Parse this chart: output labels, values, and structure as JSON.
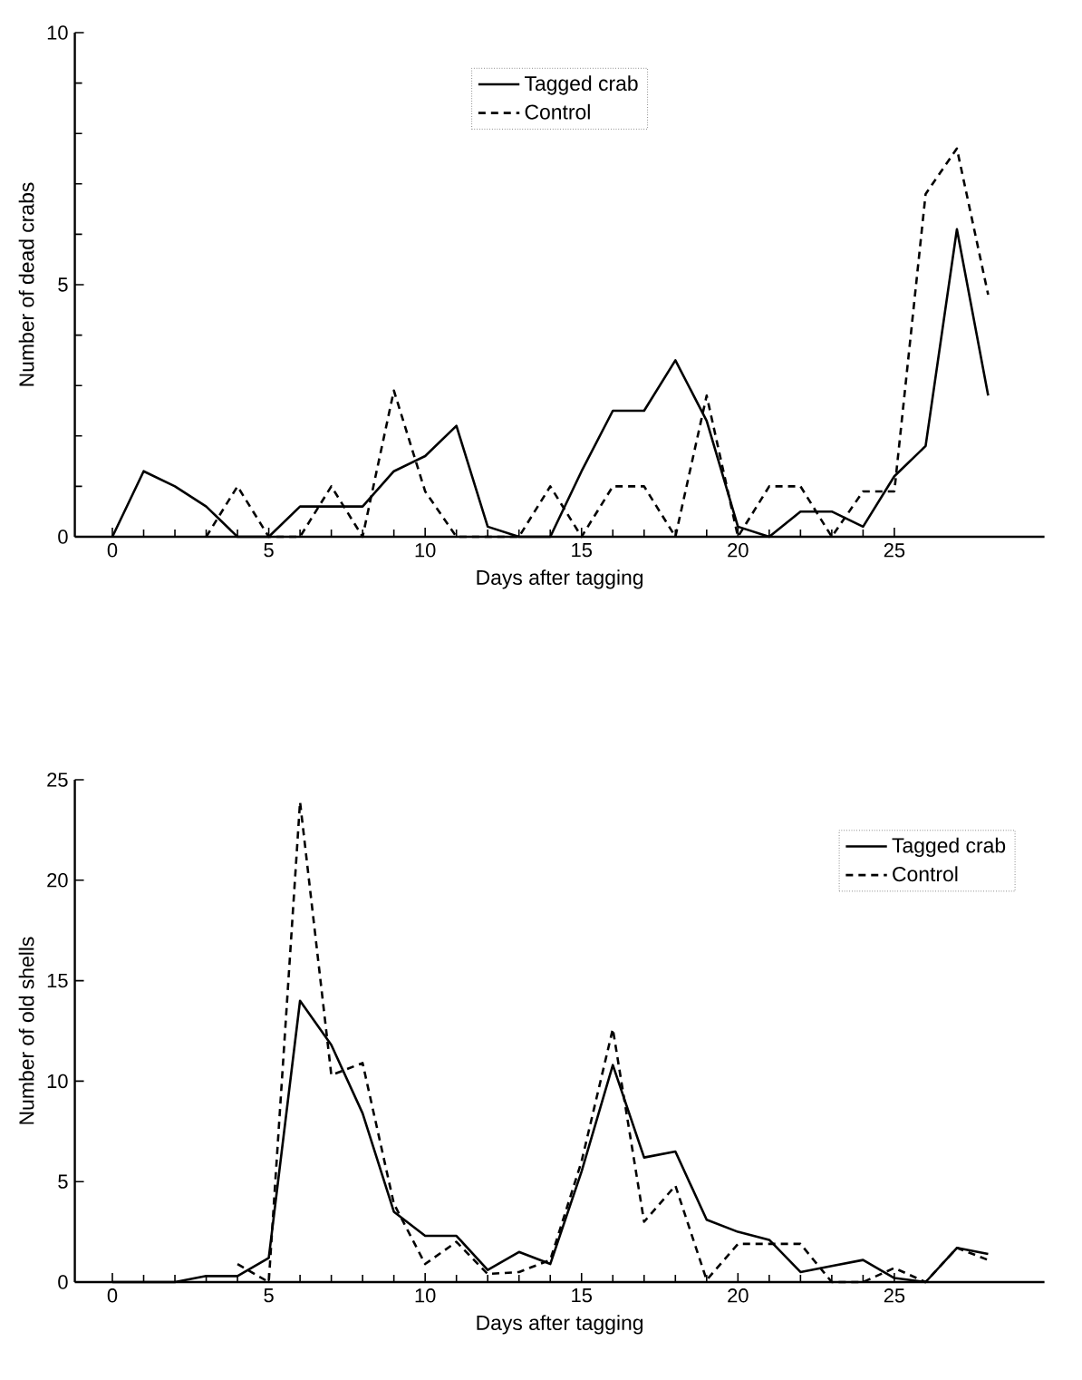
{
  "chart_data": [
    {
      "type": "line",
      "xlabel": "Days after tagging",
      "ylabel": "Number of dead crabs",
      "x": [
        0,
        1,
        2,
        3,
        4,
        5,
        6,
        7,
        8,
        9,
        10,
        11,
        12,
        13,
        14,
        15,
        16,
        17,
        18,
        19,
        20,
        21,
        22,
        23,
        24,
        25,
        26,
        27,
        28
      ],
      "xlim": [
        -1.2,
        29.8
      ],
      "ylim": [
        0,
        10
      ],
      "xticks": [
        0,
        5,
        10,
        15,
        20,
        25
      ],
      "yticks": [
        0,
        5,
        10
      ],
      "legend": "top",
      "grid": false,
      "series": [
        {
          "name": "Tagged crab",
          "color": "#000000",
          "line_style": "solid",
          "values": [
            0,
            1.3,
            1.0,
            0.6,
            0,
            0,
            0.6,
            0.6,
            0.6,
            1.3,
            1.6,
            2.2,
            0.2,
            0,
            0,
            1.3,
            2.5,
            2.5,
            3.5,
            2.3,
            0.2,
            0,
            0.5,
            0.5,
            0.2,
            1.2,
            1.8,
            6.1,
            2.8
          ]
        },
        {
          "name": "Control",
          "color": "#000000",
          "line_style": "dashed",
          "values": [
            null,
            null,
            null,
            0,
            1.0,
            0,
            0,
            1.0,
            0,
            2.9,
            0.9,
            0,
            0,
            0,
            1.0,
            0,
            1.0,
            1.0,
            0,
            2.8,
            0,
            1.0,
            1.0,
            0,
            0.9,
            0.9,
            6.8,
            7.7,
            4.8
          ]
        }
      ]
    },
    {
      "type": "line",
      "xlabel": "Days after tagging",
      "ylabel": "Number of old shells",
      "x": [
        0,
        1,
        2,
        3,
        4,
        5,
        6,
        7,
        8,
        9,
        10,
        11,
        12,
        13,
        14,
        15,
        16,
        17,
        18,
        19,
        20,
        21,
        22,
        23,
        24,
        25,
        26,
        27,
        28
      ],
      "xlim": [
        -1.2,
        29.8
      ],
      "ylim": [
        0,
        25
      ],
      "xticks": [
        0,
        5,
        10,
        15,
        20,
        25
      ],
      "yticks": [
        0,
        5,
        10,
        15,
        20,
        25
      ],
      "legend": "top right",
      "grid": false,
      "series": [
        {
          "name": "Tagged crab",
          "color": "#000000",
          "line_style": "solid",
          "values": [
            0,
            0,
            0,
            0.3,
            0.3,
            1.2,
            14,
            11.8,
            8.4,
            3.5,
            2.3,
            2.3,
            0.6,
            1.5,
            0.9,
            5.5,
            10.8,
            6.2,
            6.5,
            3.1,
            2.5,
            2.1,
            0.5,
            0.8,
            1.1,
            0.2,
            0,
            1.7,
            1.4
          ]
        },
        {
          "name": "Control",
          "color": "#000000",
          "line_style": "dashed",
          "values": [
            null,
            null,
            null,
            null,
            0.9,
            0,
            23.9,
            10.3,
            10.9,
            3.9,
            0.9,
            2.0,
            0.4,
            0.5,
            1.1,
            6,
            12.6,
            3.0,
            4.8,
            0.1,
            1.9,
            1.9,
            1.9,
            0,
            0,
            0.7,
            0,
            1.7,
            1.1
          ]
        }
      ]
    }
  ]
}
